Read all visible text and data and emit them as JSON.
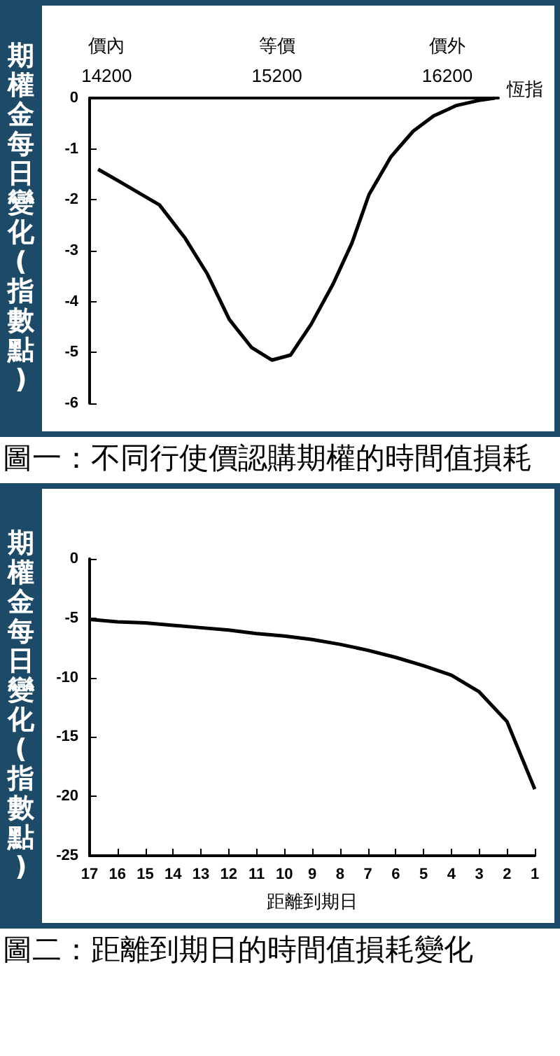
{
  "chart_data": [
    {
      "type": "line",
      "title": "圖一：不同行使價認購期權的時間值損耗",
      "ylabel": "期權金每日變化(指數點)",
      "xlabel": "恆指",
      "color": "#000000",
      "marker": "none",
      "grid": false,
      "x": [
        14150,
        14280,
        14510,
        14660,
        14790,
        14920,
        15050,
        15170,
        15280,
        15400,
        15530,
        15640,
        15740,
        15870,
        16000,
        16120,
        16250,
        16380,
        16480
      ],
      "values": [
        -1.4,
        -1.65,
        -2.1,
        -2.75,
        -3.45,
        -4.35,
        -4.9,
        -5.15,
        -5.05,
        -4.45,
        -3.65,
        -2.85,
        -1.9,
        -1.15,
        -0.65,
        -0.35,
        -0.15,
        -0.05,
        0
      ],
      "xlim": [
        14100,
        16500
      ],
      "xticks": [
        14200,
        15200,
        16200
      ],
      "annotations": [
        "價內",
        "等價",
        "價外"
      ],
      "ylim": [
        -6,
        0
      ],
      "yticks": [
        -6,
        -5,
        -4,
        -3,
        -2,
        -1,
        0
      ]
    },
    {
      "type": "line",
      "title": "圖二：距離到期日的時間值損耗變化",
      "ylabel": "期權金每日變化(指數點)",
      "xlabel": "距離到期日",
      "color": "#000000",
      "marker": "none",
      "grid": false,
      "categories": [
        "17",
        "16",
        "15",
        "14",
        "13",
        "12",
        "11",
        "10",
        "9",
        "8",
        "7",
        "6",
        "5",
        "4",
        "3",
        "2",
        "1"
      ],
      "values": [
        -5.1,
        -5.3,
        -5.4,
        -5.6,
        -5.8,
        -6.0,
        -6.3,
        -6.5,
        -6.8,
        -7.2,
        -7.7,
        -8.3,
        -9.0,
        -9.8,
        -11.2,
        -13.7,
        -19.4
      ],
      "ylim": [
        -25,
        0
      ],
      "yticks": [
        -25,
        -20,
        -15,
        -10,
        -5,
        0
      ]
    }
  ]
}
